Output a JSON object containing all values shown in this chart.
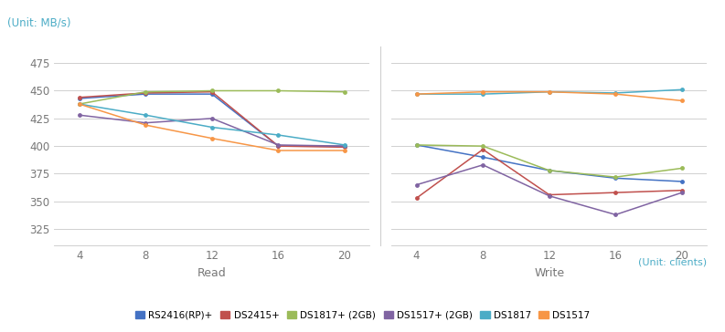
{
  "x": [
    4,
    8,
    12,
    16,
    20
  ],
  "read": {
    "RS2416(RP)+": [
      443,
      447,
      447,
      400,
      400
    ],
    "DS2415+": [
      444,
      448,
      449,
      400,
      399
    ],
    "DS1817+ (2GB)": [
      438,
      449,
      450,
      450,
      449
    ],
    "DS1517+ (2GB)": [
      428,
      421,
      425,
      401,
      400
    ],
    "DS1817": [
      438,
      428,
      417,
      410,
      401
    ],
    "DS1517": [
      438,
      419,
      407,
      396,
      396
    ]
  },
  "write": {
    "RS2416(RP)+": [
      401,
      390,
      378,
      371,
      368
    ],
    "DS2415+": [
      353,
      397,
      356,
      358,
      360
    ],
    "DS1817+ (2GB)": [
      401,
      400,
      378,
      372,
      380
    ],
    "DS1517+ (2GB)": [
      365,
      383,
      355,
      338,
      358
    ],
    "DS1817": [
      447,
      447,
      449,
      448,
      451
    ],
    "DS1517": [
      447,
      449,
      449,
      447,
      441
    ]
  },
  "colors": {
    "RS2416(RP)+": "#4472C4",
    "DS2415+": "#C0504D",
    "DS1817+ (2GB)": "#9BBB59",
    "DS1517+ (2GB)": "#8064A2",
    "DS1817": "#4BACC6",
    "DS1517": "#F79646"
  },
  "ylim": [
    310,
    490
  ],
  "yticks": [
    325,
    350,
    375,
    400,
    425,
    450,
    475
  ],
  "title_unit": "(Unit: MB/s)",
  "footer_unit": "(Unit: clients)",
  "xlabel_read": "Read",
  "xlabel_write": "Write",
  "bg_color": "#ffffff",
  "grid_color": "#d0d0d0",
  "legend_order": [
    "RS2416(RP)+",
    "DS2415+",
    "DS1817+ (2GB)",
    "DS1517+ (2GB)",
    "DS1817",
    "DS1517"
  ]
}
